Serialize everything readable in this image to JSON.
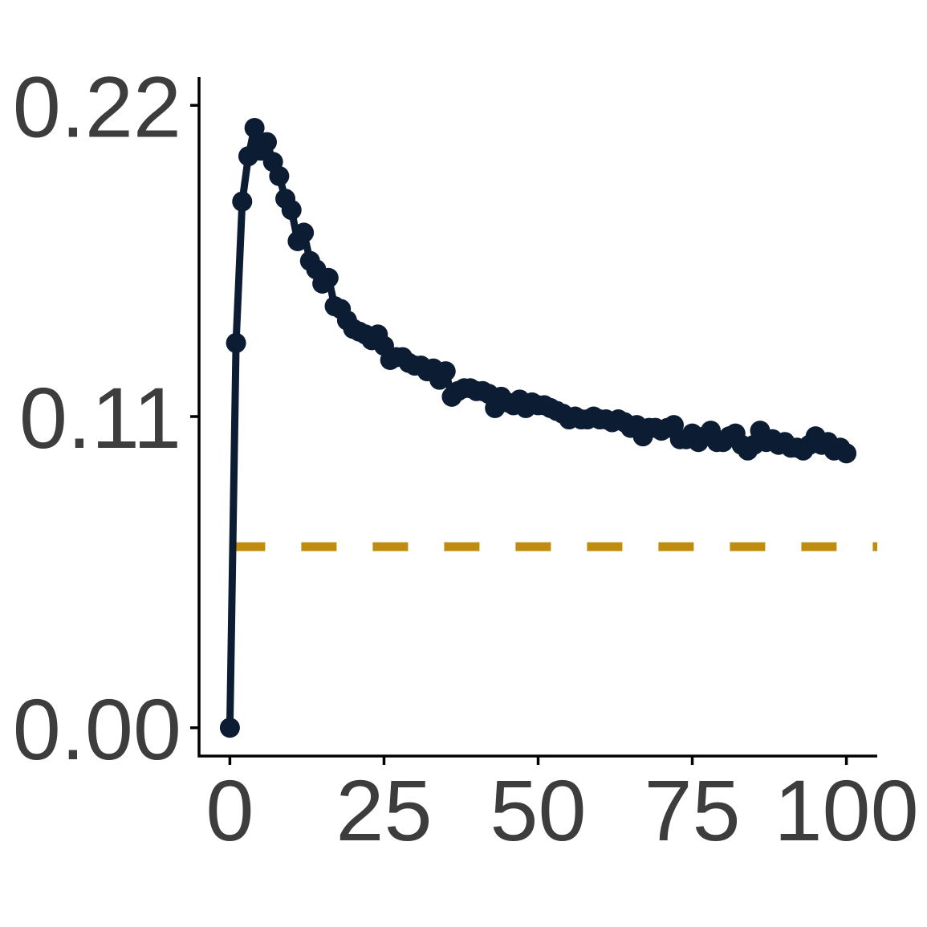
{
  "chart_data": {
    "type": "line",
    "title": "",
    "xlabel": "",
    "ylabel": "",
    "xlim": [
      -5,
      105
    ],
    "ylim": [
      -0.01,
      0.23
    ],
    "x_ticks": [
      0,
      25,
      50,
      75,
      100
    ],
    "x_tick_labels": [
      "0",
      "25",
      "50",
      "75",
      "100"
    ],
    "y_ticks": [
      0.0,
      0.11,
      0.22
    ],
    "y_tick_labels": [
      "0.00",
      "0.11",
      "0.22"
    ],
    "grid": false,
    "legend": "none",
    "series": [
      {
        "color": "#0c1c33",
        "style": "line-with-markers",
        "x": [
          0,
          1,
          2,
          3,
          4,
          5,
          6,
          7,
          8,
          9,
          10,
          11,
          12,
          13,
          14,
          15,
          16,
          17,
          18,
          19,
          20,
          21,
          22,
          23,
          24,
          25,
          26,
          27,
          28,
          29,
          30,
          31,
          32,
          33,
          34,
          35,
          36,
          37,
          38,
          39,
          40,
          41,
          42,
          43,
          44,
          45,
          46,
          47,
          48,
          49,
          50,
          51,
          52,
          53,
          54,
          55,
          56,
          57,
          58,
          59,
          60,
          61,
          62,
          63,
          64,
          65,
          66,
          67,
          68,
          69,
          70,
          71,
          72,
          73,
          74,
          75,
          76,
          77,
          78,
          79,
          80,
          81,
          82,
          83,
          84,
          85,
          86,
          87,
          88,
          89,
          90,
          91,
          92,
          93,
          94,
          95,
          96,
          97,
          98,
          99,
          100
        ],
        "y": [
          0.0,
          0.136,
          0.186,
          0.202,
          0.212,
          0.204,
          0.207,
          0.2,
          0.195,
          0.187,
          0.183,
          0.172,
          0.175,
          0.165,
          0.162,
          0.157,
          0.159,
          0.149,
          0.148,
          0.144,
          0.141,
          0.14,
          0.139,
          0.137,
          0.139,
          0.135,
          0.13,
          0.131,
          0.131,
          0.129,
          0.128,
          0.128,
          0.126,
          0.127,
          0.123,
          0.126,
          0.117,
          0.119,
          0.12,
          0.12,
          0.119,
          0.119,
          0.118,
          0.113,
          0.117,
          0.115,
          0.114,
          0.116,
          0.113,
          0.115,
          0.114,
          0.114,
          0.113,
          0.112,
          0.111,
          0.109,
          0.11,
          0.109,
          0.109,
          0.11,
          0.109,
          0.109,
          0.108,
          0.109,
          0.108,
          0.106,
          0.107,
          0.103,
          0.106,
          0.106,
          0.105,
          0.106,
          0.107,
          0.102,
          0.102,
          0.104,
          0.101,
          0.103,
          0.105,
          0.101,
          0.101,
          0.103,
          0.104,
          0.1,
          0.098,
          0.1,
          0.105,
          0.101,
          0.102,
          0.1,
          0.101,
          0.099,
          0.099,
          0.098,
          0.1,
          0.103,
          0.1,
          0.101,
          0.098,
          0.099,
          0.097
        ]
      }
    ],
    "reference_line": {
      "orientation": "horizontal",
      "y": 0.064,
      "x_range": [
        0,
        105
      ],
      "color": "#bf8c0c",
      "style": "dashed"
    },
    "colors": {
      "axis": "#000000",
      "tick_text": "#3d3d3d"
    }
  }
}
